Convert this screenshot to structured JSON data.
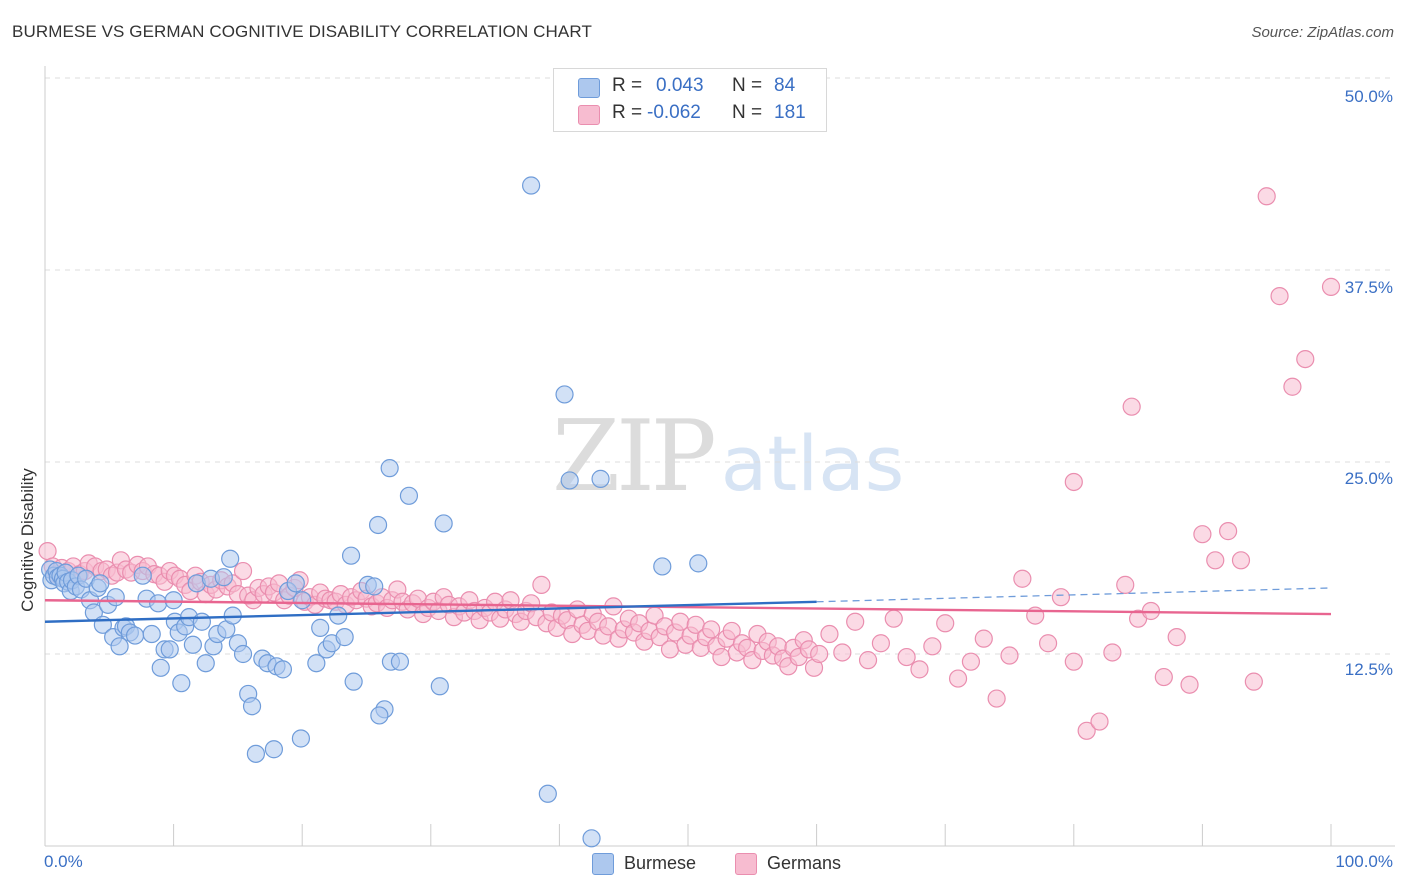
{
  "title": "BURMESE VS GERMAN COGNITIVE DISABILITY CORRELATION CHART",
  "source": "Source: ZipAtlas.com",
  "watermark": {
    "zip": "ZIP",
    "atlas": "atlas"
  },
  "legend": {
    "rows": [
      {
        "r_label": "R =",
        "r_value": "0.043",
        "n_label": "N =",
        "n_value": "84"
      },
      {
        "r_label": "R =",
        "r_value": "-0.062",
        "n_label": "N =",
        "n_value": "181"
      }
    ]
  },
  "colors": {
    "burmese_fill": "#adc8ee",
    "burmese_stroke": "#6f9cda",
    "burmese_line": "#2f6ec4",
    "germans_fill": "#f7bcd0",
    "germans_stroke": "#ea8eaf",
    "germans_line": "#e86590",
    "axis_text": "#3a6fc4",
    "grid": "#dddddd"
  },
  "chart_data": {
    "type": "scatter",
    "title": "BURMESE VS GERMAN COGNITIVE DISABILITY CORRELATION CHART",
    "xlabel": "",
    "ylabel": "Cognitive Disability",
    "xlim": [
      0,
      100
    ],
    "ylim": [
      0,
      50
    ],
    "x_tick_labels": [
      "0.0%",
      "100.0%"
    ],
    "y_ticks": [
      12.5,
      25.0,
      37.5,
      50.0
    ],
    "y_tick_labels": [
      "12.5%",
      "25.0%",
      "37.5%",
      "50.0%"
    ],
    "grid": true,
    "legend_position": "bottom",
    "series": [
      {
        "name": "Burmese",
        "r": 0.043,
        "n": 84,
        "trend": {
          "x": [
            0,
            60
          ],
          "y": [
            14.6,
            15.9
          ]
        },
        "trend_extension": {
          "x": [
            60,
            100
          ],
          "y": [
            15.9,
            16.8
          ]
        },
        "points": [
          [
            0.4,
            18.0
          ],
          [
            0.5,
            17.3
          ],
          [
            0.7,
            17.6
          ],
          [
            0.9,
            17.9
          ],
          [
            1.0,
            17.5
          ],
          [
            1.2,
            17.6
          ],
          [
            1.4,
            17.4
          ],
          [
            1.5,
            17.1
          ],
          [
            1.6,
            17.8
          ],
          [
            1.8,
            17.2
          ],
          [
            2.0,
            16.6
          ],
          [
            2.1,
            17.3
          ],
          [
            2.4,
            16.9
          ],
          [
            2.6,
            17.6
          ],
          [
            2.8,
            16.7
          ],
          [
            3.2,
            17.4
          ],
          [
            3.5,
            16.0
          ],
          [
            3.8,
            15.2
          ],
          [
            4.1,
            16.8
          ],
          [
            4.3,
            17.1
          ],
          [
            4.5,
            14.4
          ],
          [
            4.9,
            15.7
          ],
          [
            5.3,
            13.6
          ],
          [
            5.5,
            16.2
          ],
          [
            5.8,
            13.0
          ],
          [
            6.1,
            14.2
          ],
          [
            6.3,
            14.3
          ],
          [
            6.6,
            13.9
          ],
          [
            7.0,
            13.7
          ],
          [
            7.6,
            17.6
          ],
          [
            7.9,
            16.1
          ],
          [
            8.3,
            13.8
          ],
          [
            8.8,
            15.8
          ],
          [
            9.0,
            11.6
          ],
          [
            9.3,
            12.8
          ],
          [
            9.7,
            12.8
          ],
          [
            10.0,
            16.0
          ],
          [
            10.1,
            14.6
          ],
          [
            10.4,
            13.9
          ],
          [
            10.6,
            10.6
          ],
          [
            10.9,
            14.3
          ],
          [
            11.2,
            14.9
          ],
          [
            11.5,
            13.1
          ],
          [
            11.8,
            17.1
          ],
          [
            12.2,
            14.6
          ],
          [
            12.5,
            11.9
          ],
          [
            12.9,
            17.4
          ],
          [
            13.1,
            13.0
          ],
          [
            13.4,
            13.8
          ],
          [
            13.9,
            17.5
          ],
          [
            14.1,
            14.1
          ],
          [
            14.4,
            18.7
          ],
          [
            14.6,
            15.0
          ],
          [
            15.0,
            13.2
          ],
          [
            15.4,
            12.5
          ],
          [
            15.8,
            9.9
          ],
          [
            16.1,
            9.1
          ],
          [
            16.4,
            6.0
          ],
          [
            16.9,
            12.2
          ],
          [
            17.3,
            11.9
          ],
          [
            17.8,
            6.3
          ],
          [
            18.0,
            11.7
          ],
          [
            18.5,
            11.5
          ],
          [
            18.9,
            16.6
          ],
          [
            19.5,
            17.1
          ],
          [
            19.9,
            7.0
          ],
          [
            20.0,
            16.0
          ],
          [
            21.1,
            11.9
          ],
          [
            21.4,
            14.2
          ],
          [
            21.9,
            12.8
          ],
          [
            22.3,
            13.2
          ],
          [
            22.8,
            15.0
          ],
          [
            23.3,
            13.6
          ],
          [
            23.8,
            18.9
          ],
          [
            24.0,
            10.7
          ],
          [
            25.1,
            17.0
          ],
          [
            25.6,
            16.9
          ],
          [
            26.4,
            8.9
          ],
          [
            26.9,
            12.0
          ],
          [
            27.6,
            12.0
          ],
          [
            37.8,
            43.0
          ],
          [
            40.4,
            29.4
          ],
          [
            40.8,
            23.8
          ],
          [
            26.8,
            24.6
          ],
          [
            28.3,
            22.8
          ],
          [
            31.0,
            21.0
          ],
          [
            39.1,
            3.4
          ],
          [
            42.5,
            0.5
          ],
          [
            43.2,
            23.9
          ],
          [
            50.8,
            18.4
          ],
          [
            48.0,
            18.2
          ],
          [
            26.0,
            8.5
          ],
          [
            25.9,
            20.9
          ],
          [
            30.7,
            10.4
          ]
        ]
      },
      {
        "name": "Germans",
        "r": -0.062,
        "n": 181,
        "trend": {
          "x": [
            0,
            100
          ],
          "y": [
            16.0,
            15.1
          ]
        },
        "points": [
          [
            0.2,
            19.2
          ],
          [
            0.6,
            18.2
          ],
          [
            0.9,
            17.7
          ],
          [
            1.3,
            18.1
          ],
          [
            1.8,
            17.9
          ],
          [
            2.2,
            18.2
          ],
          [
            2.7,
            17.7
          ],
          [
            3.1,
            17.9
          ],
          [
            3.4,
            18.4
          ],
          [
            3.9,
            18.2
          ],
          [
            4.4,
            17.9
          ],
          [
            4.8,
            18.0
          ],
          [
            5.2,
            17.6
          ],
          [
            5.6,
            17.8
          ],
          [
            5.9,
            18.6
          ],
          [
            6.3,
            18.0
          ],
          [
            6.7,
            17.8
          ],
          [
            7.2,
            18.3
          ],
          [
            7.6,
            17.9
          ],
          [
            8.0,
            18.2
          ],
          [
            8.5,
            17.7
          ],
          [
            8.9,
            17.6
          ],
          [
            9.3,
            17.2
          ],
          [
            9.7,
            17.9
          ],
          [
            10.1,
            17.6
          ],
          [
            10.5,
            17.4
          ],
          [
            10.9,
            17.0
          ],
          [
            11.3,
            16.6
          ],
          [
            11.7,
            17.6
          ],
          [
            12.1,
            17.2
          ],
          [
            12.5,
            16.4
          ],
          [
            12.9,
            17.0
          ],
          [
            13.3,
            16.7
          ],
          [
            13.7,
            17.3
          ],
          [
            14.2,
            16.9
          ],
          [
            14.6,
            17.1
          ],
          [
            15.0,
            16.4
          ],
          [
            15.4,
            17.9
          ],
          [
            15.8,
            16.3
          ],
          [
            16.2,
            16.0
          ],
          [
            16.6,
            16.8
          ],
          [
            17.0,
            16.4
          ],
          [
            17.4,
            16.9
          ],
          [
            17.8,
            16.5
          ],
          [
            18.2,
            17.1
          ],
          [
            18.6,
            16.0
          ],
          [
            19.0,
            16.3
          ],
          [
            19.4,
            16.8
          ],
          [
            19.8,
            17.3
          ],
          [
            20.2,
            15.9
          ],
          [
            20.6,
            16.2
          ],
          [
            21.0,
            15.7
          ],
          [
            21.4,
            16.5
          ],
          [
            21.8,
            16.1
          ],
          [
            22.2,
            16.0
          ],
          [
            22.6,
            15.9
          ],
          [
            23.0,
            16.4
          ],
          [
            23.4,
            15.7
          ],
          [
            23.8,
            16.2
          ],
          [
            24.2,
            16.0
          ],
          [
            24.6,
            16.6
          ],
          [
            25.0,
            16.1
          ],
          [
            25.4,
            15.6
          ],
          [
            25.8,
            15.8
          ],
          [
            26.2,
            16.2
          ],
          [
            26.6,
            15.5
          ],
          [
            27.0,
            16.0
          ],
          [
            27.4,
            16.7
          ],
          [
            27.8,
            15.9
          ],
          [
            28.2,
            15.4
          ],
          [
            28.6,
            15.8
          ],
          [
            29.0,
            16.1
          ],
          [
            29.4,
            15.1
          ],
          [
            29.8,
            15.5
          ],
          [
            30.2,
            15.9
          ],
          [
            30.6,
            15.3
          ],
          [
            31.0,
            16.2
          ],
          [
            31.4,
            15.7
          ],
          [
            31.8,
            14.9
          ],
          [
            32.2,
            15.6
          ],
          [
            32.6,
            15.2
          ],
          [
            33.0,
            16.0
          ],
          [
            33.4,
            15.3
          ],
          [
            33.8,
            14.7
          ],
          [
            34.2,
            15.5
          ],
          [
            34.6,
            15.2
          ],
          [
            35.0,
            15.9
          ],
          [
            35.4,
            14.8
          ],
          [
            35.8,
            15.4
          ],
          [
            36.2,
            16.0
          ],
          [
            36.6,
            15.1
          ],
          [
            37.0,
            14.6
          ],
          [
            37.4,
            15.3
          ],
          [
            37.8,
            15.8
          ],
          [
            38.2,
            14.9
          ],
          [
            38.6,
            17.0
          ],
          [
            39.0,
            14.5
          ],
          [
            39.4,
            15.2
          ],
          [
            39.8,
            14.2
          ],
          [
            40.2,
            15.0
          ],
          [
            40.6,
            14.7
          ],
          [
            41.0,
            13.8
          ],
          [
            41.4,
            15.4
          ],
          [
            41.8,
            14.4
          ],
          [
            42.2,
            14.0
          ],
          [
            42.6,
            15.1
          ],
          [
            43.0,
            14.6
          ],
          [
            43.4,
            13.7
          ],
          [
            43.8,
            14.3
          ],
          [
            44.2,
            15.6
          ],
          [
            44.6,
            13.5
          ],
          [
            45.0,
            14.1
          ],
          [
            45.4,
            14.8
          ],
          [
            45.8,
            13.9
          ],
          [
            46.2,
            14.5
          ],
          [
            46.6,
            13.3
          ],
          [
            47.0,
            14.0
          ],
          [
            47.4,
            15.0
          ],
          [
            47.8,
            13.6
          ],
          [
            48.2,
            14.3
          ],
          [
            48.6,
            12.8
          ],
          [
            49.0,
            13.9
          ],
          [
            49.4,
            14.6
          ],
          [
            49.8,
            13.1
          ],
          [
            50.2,
            13.7
          ],
          [
            50.6,
            14.4
          ],
          [
            51.0,
            12.9
          ],
          [
            51.4,
            13.6
          ],
          [
            51.8,
            14.1
          ],
          [
            52.2,
            13.0
          ],
          [
            52.6,
            12.3
          ],
          [
            53.0,
            13.5
          ],
          [
            53.4,
            14.0
          ],
          [
            53.8,
            12.6
          ],
          [
            54.2,
            13.2
          ],
          [
            54.6,
            12.9
          ],
          [
            55.0,
            12.1
          ],
          [
            55.4,
            13.8
          ],
          [
            55.8,
            12.7
          ],
          [
            56.2,
            13.3
          ],
          [
            56.6,
            12.4
          ],
          [
            57.0,
            13.0
          ],
          [
            57.4,
            12.2
          ],
          [
            57.8,
            11.7
          ],
          [
            58.2,
            12.9
          ],
          [
            58.6,
            12.3
          ],
          [
            59.0,
            13.4
          ],
          [
            59.4,
            12.8
          ],
          [
            59.8,
            11.6
          ],
          [
            60.2,
            12.5
          ],
          [
            61.0,
            13.8
          ],
          [
            62.0,
            12.6
          ],
          [
            63.0,
            14.6
          ],
          [
            64.0,
            12.1
          ],
          [
            65.0,
            13.2
          ],
          [
            66.0,
            14.8
          ],
          [
            67.0,
            12.3
          ],
          [
            68.0,
            11.5
          ],
          [
            69.0,
            13.0
          ],
          [
            70.0,
            14.5
          ],
          [
            71.0,
            10.9
          ],
          [
            72.0,
            12.0
          ],
          [
            73.0,
            13.5
          ],
          [
            74.0,
            9.6
          ],
          [
            75.0,
            12.4
          ],
          [
            76.0,
            17.4
          ],
          [
            77.0,
            15.0
          ],
          [
            78.0,
            13.2
          ],
          [
            79.0,
            16.2
          ],
          [
            80.0,
            12.0
          ],
          [
            81.0,
            7.5
          ],
          [
            82.0,
            8.1
          ],
          [
            83.0,
            12.6
          ],
          [
            84.0,
            17.0
          ],
          [
            85.0,
            14.8
          ],
          [
            86.0,
            15.3
          ],
          [
            87.0,
            11.0
          ],
          [
            88.0,
            13.6
          ],
          [
            89.0,
            10.5
          ],
          [
            90.0,
            20.3
          ],
          [
            91.0,
            18.6
          ],
          [
            92.0,
            20.5
          ],
          [
            93.0,
            18.6
          ],
          [
            94.0,
            10.7
          ],
          [
            95.0,
            42.3
          ],
          [
            96.0,
            35.8
          ],
          [
            97.0,
            29.9
          ],
          [
            98.0,
            31.7
          ],
          [
            100.0,
            36.4
          ],
          [
            84.5,
            28.6
          ],
          [
            80.0,
            23.7
          ]
        ]
      }
    ]
  },
  "bottom_legend": [
    {
      "name": "Burmese"
    },
    {
      "name": "Germans"
    }
  ]
}
